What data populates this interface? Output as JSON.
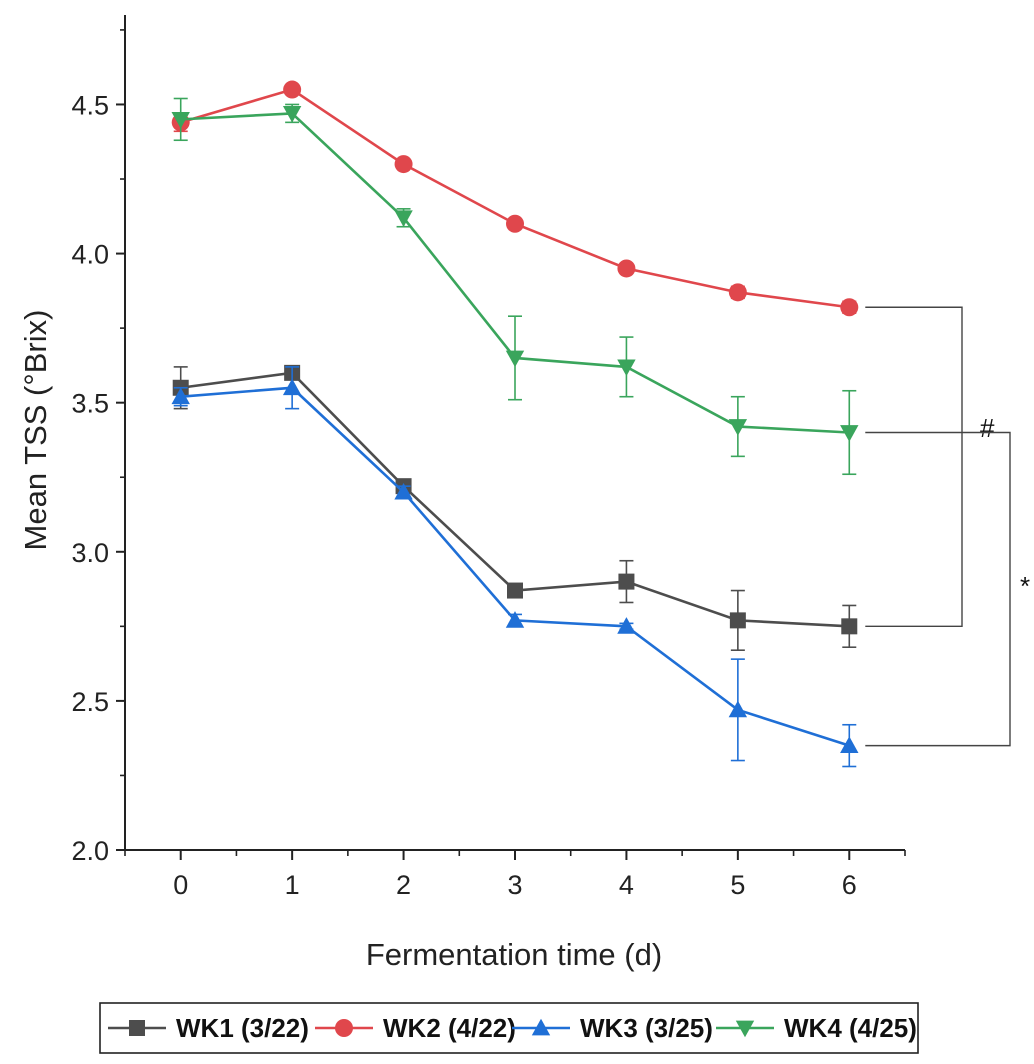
{
  "chart_data": {
    "type": "line",
    "xlabel": "Fermentation time (d)",
    "ylabel": "Mean TSS (°Brix)",
    "x": [
      0,
      1,
      2,
      3,
      4,
      5,
      6
    ],
    "xlim": [
      -0.5,
      6.5
    ],
    "ylim": [
      2.0,
      4.8
    ],
    "xticks": [
      0,
      1,
      2,
      3,
      4,
      5,
      6
    ],
    "yticks": [
      2.0,
      2.5,
      3.0,
      3.5,
      4.0,
      4.5
    ],
    "ytick_labels": [
      "2.0",
      "2.5",
      "3.0",
      "3.5",
      "4.0",
      "4.5"
    ],
    "grid": false,
    "legend_position": "bottom",
    "series": [
      {
        "name": "WK1 (3/22)",
        "color": "#4d4d4d",
        "marker": "square",
        "values": [
          3.55,
          3.6,
          3.22,
          2.87,
          2.9,
          2.77,
          2.75
        ],
        "errors": [
          0.07,
          0.02,
          0.02,
          0.02,
          0.07,
          0.1,
          0.07
        ]
      },
      {
        "name": "WK2 (4/22)",
        "color": "#e0474c",
        "marker": "circle",
        "values": [
          4.44,
          4.55,
          4.3,
          4.1,
          3.95,
          3.87,
          3.82
        ],
        "errors": [
          0.03,
          0.01,
          0.01,
          0.01,
          0.01,
          0.02,
          0.02
        ]
      },
      {
        "name": "WK3 (3/25)",
        "color": "#1f6fd6",
        "marker": "triangle-up",
        "values": [
          3.52,
          3.55,
          3.2,
          2.77,
          2.75,
          2.47,
          2.35
        ],
        "errors": [
          0.03,
          0.07,
          0.02,
          0.02,
          0.01,
          0.17,
          0.07
        ]
      },
      {
        "name": "WK4 (4/25)",
        "color": "#3aa55c",
        "marker": "triangle-down",
        "values": [
          4.45,
          4.47,
          4.12,
          3.65,
          3.62,
          3.42,
          3.4
        ],
        "errors": [
          0.07,
          0.03,
          0.03,
          0.14,
          0.1,
          0.1,
          0.14
        ]
      }
    ],
    "annotations": [
      {
        "label": "#",
        "series": [
          "WK2 (4/22)",
          "WK1 (3/22)"
        ]
      },
      {
        "label": "*",
        "series": [
          "WK4 (4/25)",
          "WK3 (3/25)"
        ]
      }
    ]
  }
}
